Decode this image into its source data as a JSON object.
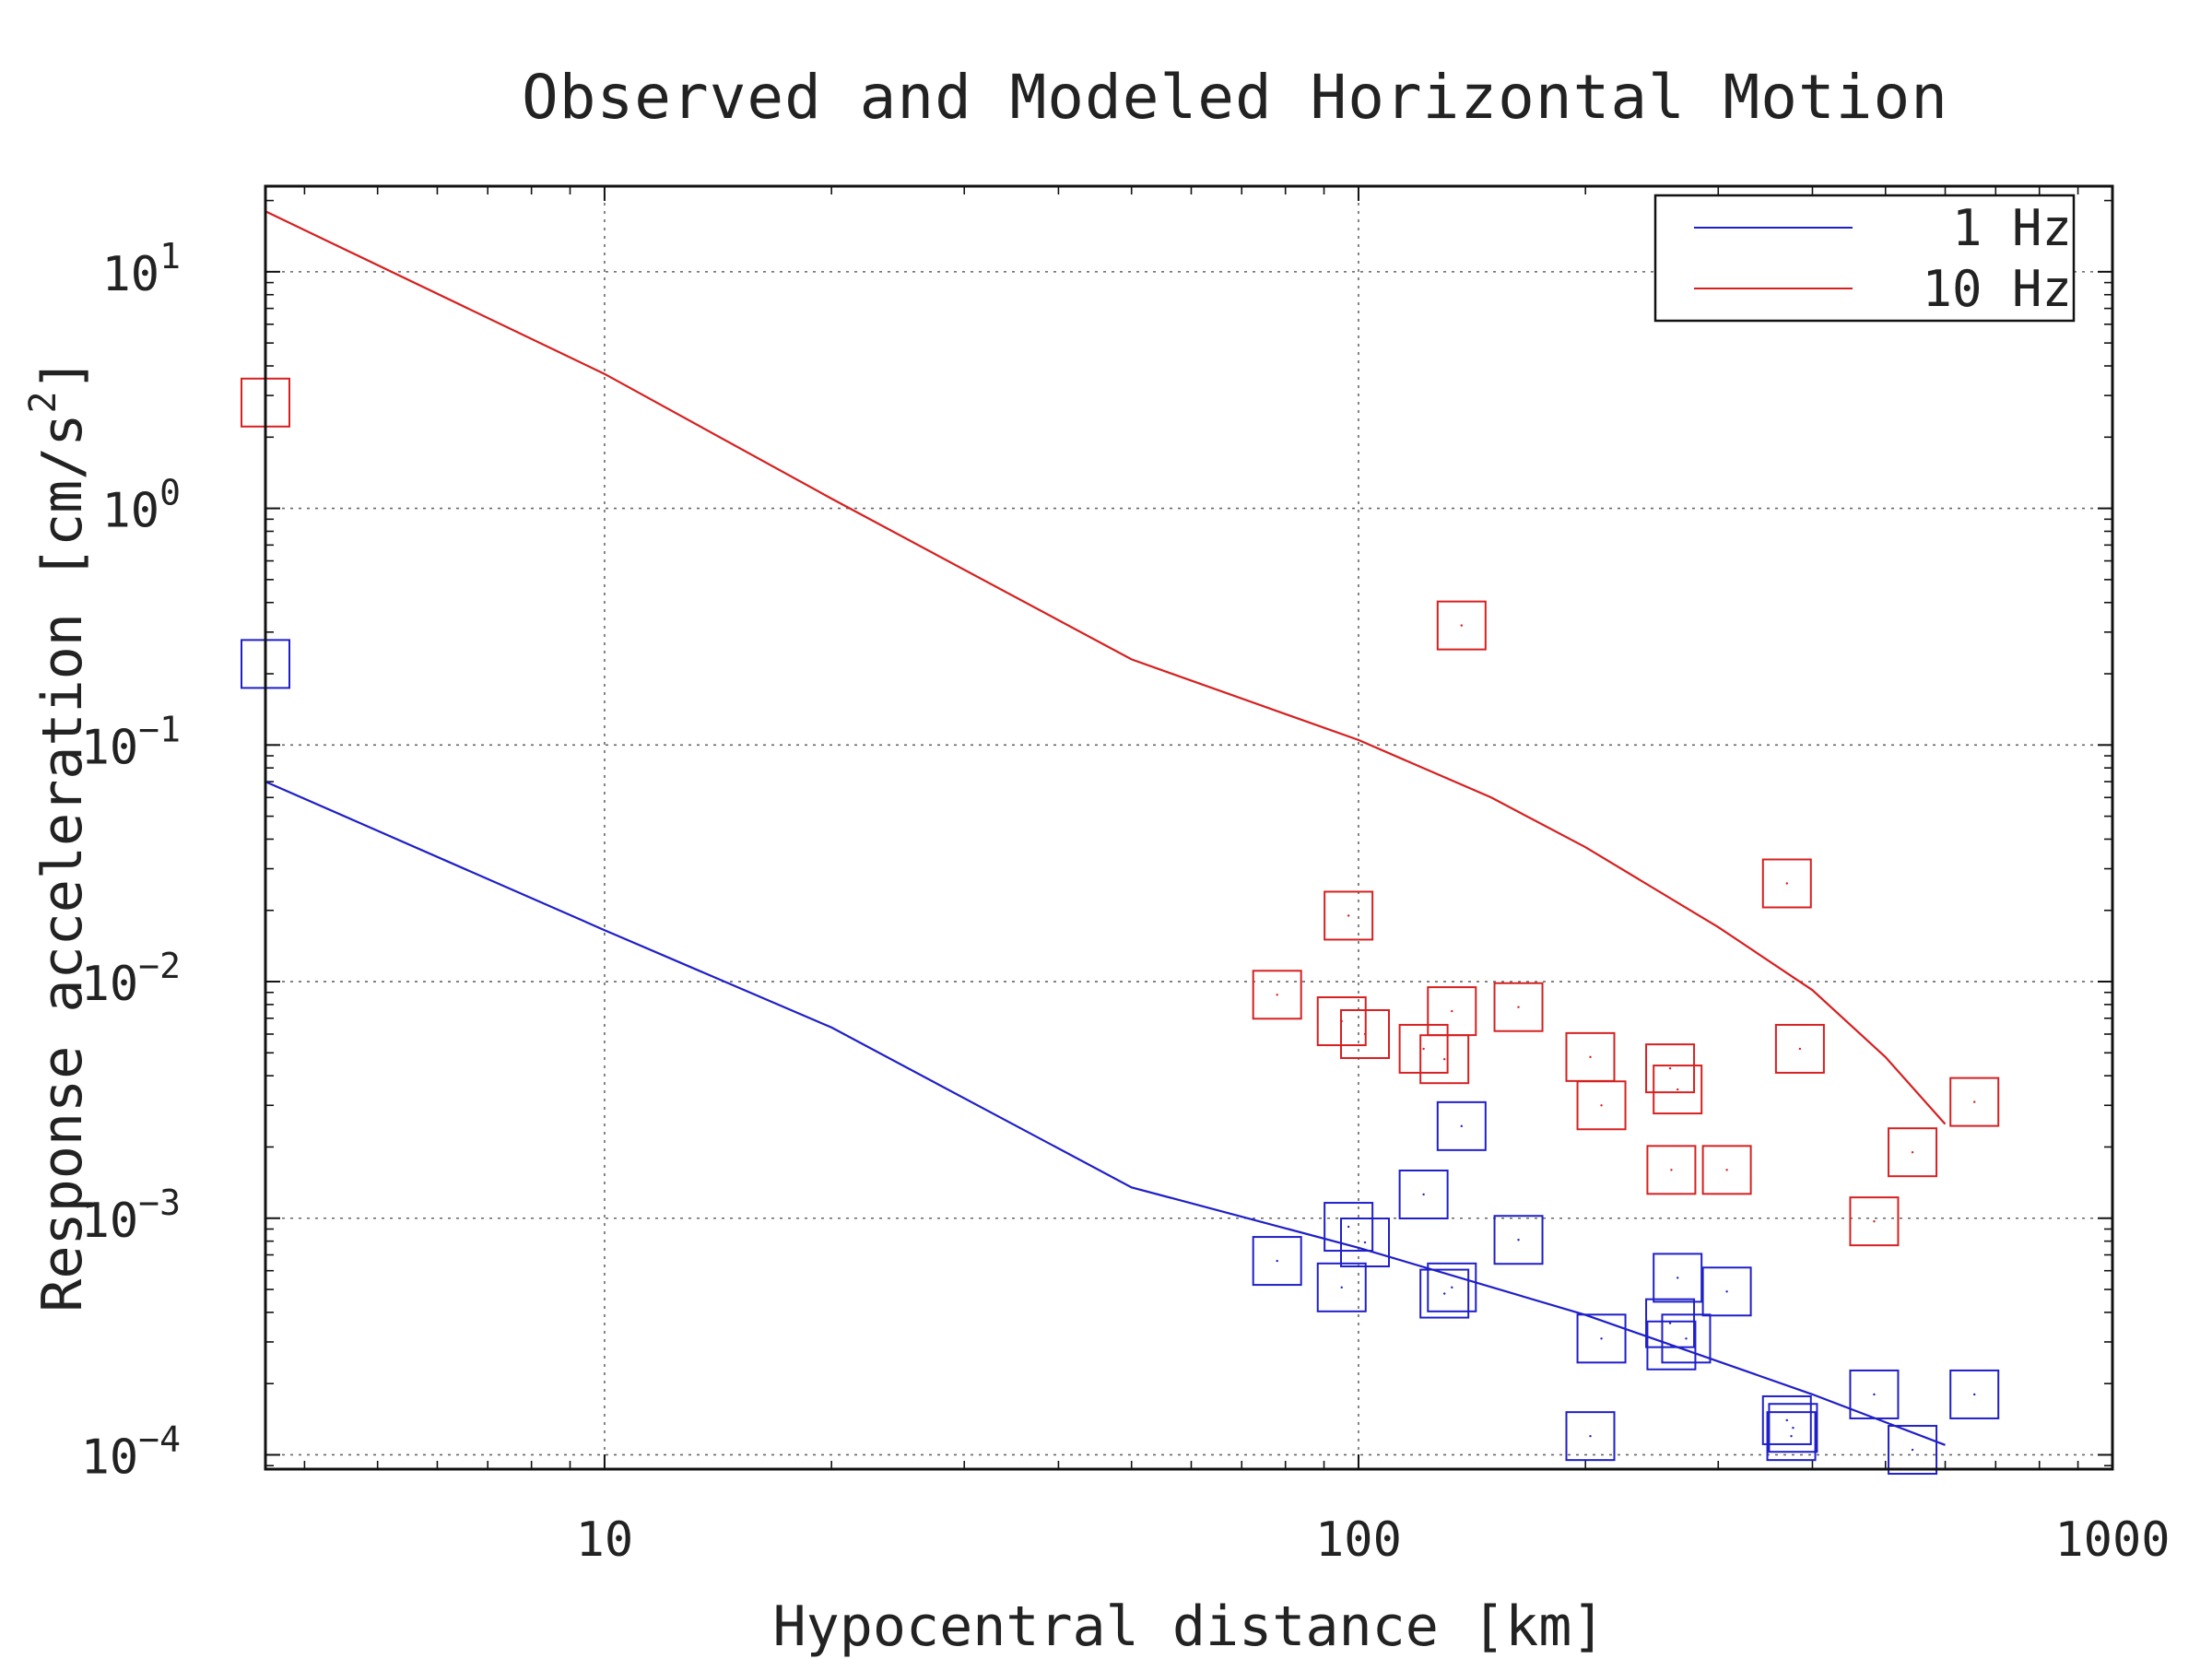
{
  "chart_data": {
    "type": "scatter",
    "title": "Observed and Modeled Horizontal Motion",
    "xlabel": "Hypocentral distance [km]",
    "ylabel": "Response acceleration [cm/s",
    "ylabel_sup": "2",
    "ylabel_end": "]",
    "x_scale": "log",
    "y_scale": "log",
    "xlim": [
      3.55,
      1000
    ],
    "ylim": [
      8.7e-05,
      23
    ],
    "grid": true,
    "legend_position": "top-right",
    "x_ticks": [
      {
        "value": 10,
        "label": "10"
      },
      {
        "value": 100,
        "label": "100"
      },
      {
        "value": 1000,
        "label": "1000"
      }
    ],
    "y_ticks": [
      {
        "value": 10,
        "base": "10",
        "exp": "1"
      },
      {
        "value": 1,
        "base": "10",
        "exp": "0"
      },
      {
        "value": 0.1,
        "base": "10",
        "exp": "−1"
      },
      {
        "value": 0.01,
        "base": "10",
        "exp": "−2"
      },
      {
        "value": 0.001,
        "base": "10",
        "exp": "−3"
      },
      {
        "value": 0.0001,
        "base": "10",
        "exp": "−4"
      }
    ],
    "series": [
      {
        "name": "1 Hz",
        "color": "#1f1fc8",
        "model_line": {
          "x": [
            3.55,
            10,
            20,
            50,
            100,
            200,
            400,
            600
          ],
          "y": [
            0.07,
            0.0165,
            0.0064,
            0.00135,
            0.00075,
            0.00039,
            0.00018,
            0.00011
          ]
        },
        "observed": {
          "x": [
            3.55,
            78,
            95,
            97,
            102,
            122,
            130,
            133,
            137,
            163,
            203,
            210,
            259,
            260,
            265,
            272,
            308,
            370,
            375,
            377,
            483,
            543,
            656
          ],
          "y": [
            0.22,
            0.00066,
            0.00051,
            0.00092,
            0.00079,
            0.00126,
            0.00048,
            0.00051,
            0.00245,
            0.00081,
            0.00012,
            0.00031,
            0.00036,
            0.00029,
            0.00056,
            0.00031,
            0.00049,
            0.00014,
            0.00012,
            0.00013,
            0.00018,
            0.000105,
            0.00018
          ]
        }
      },
      {
        "name": "10 Hz",
        "color": "#d62020",
        "model_line": {
          "x": [
            3.55,
            10,
            20,
            50,
            100,
            150,
            200,
            300,
            400,
            500,
            600
          ],
          "y": [
            18,
            3.7,
            1.1,
            0.23,
            0.105,
            0.06,
            0.037,
            0.017,
            0.0092,
            0.0048,
            0.0025
          ]
        },
        "observed": {
          "x": [
            3.55,
            78,
            95,
            97,
            102,
            122,
            130,
            133,
            137,
            163,
            203,
            210,
            259,
            260,
            265,
            308,
            370,
            385,
            483,
            543,
            656
          ],
          "y": [
            2.8,
            0.0088,
            0.0068,
            0.019,
            0.006,
            0.0052,
            0.0047,
            0.0075,
            0.32,
            0.0078,
            0.0048,
            0.003,
            0.0043,
            0.0016,
            0.0035,
            0.0016,
            0.026,
            0.0052,
            0.00097,
            0.0019,
            0.0031
          ]
        }
      }
    ]
  }
}
